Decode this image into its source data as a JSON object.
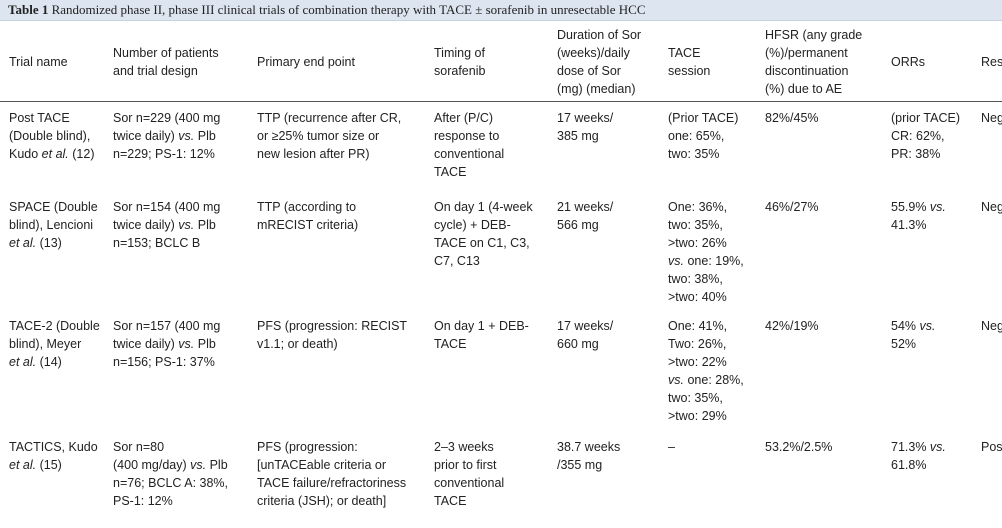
{
  "caption": {
    "label": "Table 1",
    "text": "Randomized phase II, phase III clinical trials of combination therapy with TACE ± sorafenib in unresectable HCC"
  },
  "headers": [
    [
      "Trial name"
    ],
    [
      "Number of patients",
      "and trial design"
    ],
    [
      "Primary end point"
    ],
    [
      "Timing of",
      "sorafenib"
    ],
    [
      "Duration of Sor",
      "(weeks)/daily",
      "dose of Sor",
      "(mg) (median)"
    ],
    [
      "TACE",
      "session"
    ],
    [
      "HFSR (any grade",
      "(%)/permanent",
      "discontinuation",
      "(%) due to AE"
    ],
    [
      "ORRs"
    ],
    [
      "Resu"
    ]
  ],
  "rows": [
    {
      "trial": [
        [
          "Post TACE",
          ""
        ],
        [
          "(Double blind),",
          ""
        ],
        [
          "Kudo ",
          "et al.",
          " (12)"
        ]
      ],
      "patients": [
        [
          "Sor n=229 (400 mg",
          ""
        ],
        [
          "twice daily) ",
          "vs.",
          " Plb"
        ],
        [
          "n=229; PS-1: 12%",
          ""
        ]
      ],
      "endpoint": [
        "TTP (recurrence after CR,",
        "or ≥25% tumor size or",
        "new lesion after PR)"
      ],
      "timing": [
        "After (P/C)",
        "response to",
        "conventional",
        "TACE"
      ],
      "duration": [
        "17 weeks/",
        "385 mg"
      ],
      "tace": [
        [
          "(Prior TACE)",
          ""
        ],
        [
          "one: 65%,",
          ""
        ],
        [
          "two: 35%",
          ""
        ]
      ],
      "hfsr": [
        "82%/45%"
      ],
      "orr": [
        [
          "(prior TACE)",
          ""
        ],
        [
          "CR: 62%,",
          ""
        ],
        [
          "PR: 38%",
          ""
        ]
      ],
      "result": "Neg"
    },
    {
      "trial": [
        [
          "SPACE (Double",
          ""
        ],
        [
          "blind), Lencioni",
          ""
        ],
        [
          "",
          "et al.",
          " (13)"
        ]
      ],
      "patients": [
        [
          "Sor n=154 (400 mg",
          ""
        ],
        [
          "twice daily) ",
          "vs.",
          " Plb"
        ],
        [
          "n=153; BCLC B",
          ""
        ]
      ],
      "endpoint": [
        "TTP (according to",
        "mRECIST criteria)"
      ],
      "timing": [
        "On day 1 (4-week",
        "cycle) + DEB-",
        "TACE on C1, C3,",
        "C7, C13"
      ],
      "duration": [
        "21 weeks/",
        "566 mg"
      ],
      "tace": [
        [
          "One: 36%,",
          ""
        ],
        [
          "two: 35%,",
          ""
        ],
        [
          ">two: 26%",
          ""
        ],
        [
          "",
          "vs.",
          " one: 19%,"
        ],
        [
          "two: 38%,",
          ""
        ],
        [
          ">two: 40%",
          ""
        ]
      ],
      "hfsr": [
        "46%/27%"
      ],
      "orr": [
        [
          "55.9% ",
          "vs."
        ],
        [
          "41.3%",
          ""
        ]
      ],
      "result": "Neg"
    },
    {
      "trial": [
        [
          "TACE-2 (Double",
          ""
        ],
        [
          "blind), Meyer",
          ""
        ],
        [
          "",
          "et al.",
          " (14)"
        ]
      ],
      "patients": [
        [
          "Sor n=157 (400 mg",
          ""
        ],
        [
          "twice daily) ",
          "vs.",
          " Plb"
        ],
        [
          "n=156; PS-1: 37%",
          ""
        ]
      ],
      "endpoint": [
        "PFS (progression: RECIST",
        "v1.1; or death)"
      ],
      "timing": [
        "On day 1 + DEB-",
        "TACE"
      ],
      "duration": [
        "17 weeks/",
        "660 mg"
      ],
      "tace": [
        [
          "One: 41%,",
          ""
        ],
        [
          "Two: 26%,",
          ""
        ],
        [
          ">two: 22%",
          ""
        ],
        [
          "",
          "vs.",
          " one: 28%,"
        ],
        [
          "two: 35%,",
          ""
        ],
        [
          ">two: 29%",
          ""
        ]
      ],
      "hfsr": [
        "42%/19%"
      ],
      "orr": [
        [
          "54% ",
          "vs."
        ],
        [
          "52%",
          ""
        ]
      ],
      "result": "Neg"
    },
    {
      "trial": [
        [
          "TACTICS, Kudo",
          ""
        ],
        [
          "",
          "et al.",
          " (15)"
        ]
      ],
      "patients": [
        [
          "Sor n=80",
          ""
        ],
        [
          "(400 mg/day) ",
          "vs.",
          " Plb"
        ],
        [
          "n=76; BCLC A: 38%,",
          ""
        ],
        [
          "PS-1: 12%",
          ""
        ]
      ],
      "endpoint": [
        "PFS (progression:",
        "[unTACEable criteria or",
        "TACE failure/refractoriness",
        "criteria (JSH); or death]"
      ],
      "timing": [
        "2–3 weeks",
        "prior to first",
        "conventional",
        "TACE"
      ],
      "duration": [
        "38.7 weeks",
        "/355 mg"
      ],
      "tace": [
        [
          "–",
          ""
        ]
      ],
      "hfsr": [
        "53.2%/2.5%"
      ],
      "orr": [
        [
          "71.3% ",
          "vs."
        ],
        [
          "61.8%",
          ""
        ]
      ],
      "result": "Posi"
    }
  ]
}
